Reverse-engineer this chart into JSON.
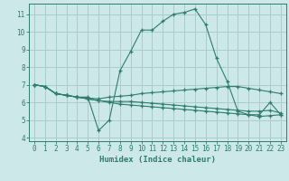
{
  "title": "",
  "xlabel": "Humidex (Indice chaleur)",
  "xlim": [
    -0.5,
    23.5
  ],
  "ylim": [
    3.8,
    11.6
  ],
  "yticks": [
    4,
    5,
    6,
    7,
    8,
    9,
    10,
    11
  ],
  "xticks": [
    0,
    1,
    2,
    3,
    4,
    5,
    6,
    7,
    8,
    9,
    10,
    11,
    12,
    13,
    14,
    15,
    16,
    17,
    18,
    19,
    20,
    21,
    22,
    23
  ],
  "bg_color": "#cde8e8",
  "grid_color": "#aacccc",
  "line_color": "#2e7d6e",
  "series": [
    {
      "x": [
        0,
        1,
        2,
        3,
        4,
        5,
        6,
        7,
        8,
        9,
        10,
        11,
        12,
        13,
        14,
        15,
        16,
        17,
        18,
        19,
        20,
        21,
        22,
        23
      ],
      "y": [
        7.0,
        6.9,
        6.5,
        6.4,
        6.3,
        6.3,
        4.4,
        5.0,
        7.8,
        8.9,
        10.1,
        10.1,
        10.6,
        11.0,
        11.1,
        11.3,
        10.4,
        8.5,
        7.2,
        5.5,
        5.3,
        5.3,
        6.0,
        5.3
      ]
    },
    {
      "x": [
        0,
        1,
        2,
        3,
        4,
        5,
        6,
        7,
        8,
        9,
        10,
        11,
        12,
        13,
        14,
        15,
        16,
        17,
        18,
        19,
        20,
        21,
        22,
        23
      ],
      "y": [
        7.0,
        6.9,
        6.5,
        6.4,
        6.3,
        6.25,
        6.2,
        6.3,
        6.35,
        6.4,
        6.5,
        6.55,
        6.6,
        6.65,
        6.7,
        6.75,
        6.8,
        6.85,
        6.9,
        6.9,
        6.8,
        6.7,
        6.6,
        6.5
      ]
    },
    {
      "x": [
        0,
        1,
        2,
        3,
        4,
        5,
        6,
        7,
        8,
        9,
        10,
        11,
        12,
        13,
        14,
        15,
        16,
        17,
        18,
        19,
        20,
        21,
        22,
        23
      ],
      "y": [
        7.0,
        6.9,
        6.5,
        6.4,
        6.3,
        6.2,
        6.1,
        6.05,
        6.05,
        6.05,
        6.0,
        5.95,
        5.9,
        5.85,
        5.8,
        5.75,
        5.7,
        5.65,
        5.6,
        5.55,
        5.5,
        5.5,
        5.55,
        5.4
      ]
    },
    {
      "x": [
        0,
        1,
        2,
        3,
        4,
        5,
        6,
        7,
        8,
        9,
        10,
        11,
        12,
        13,
        14,
        15,
        16,
        17,
        18,
        19,
        20,
        21,
        22,
        23
      ],
      "y": [
        7.0,
        6.9,
        6.5,
        6.4,
        6.3,
        6.2,
        6.1,
        6.0,
        5.9,
        5.85,
        5.8,
        5.75,
        5.7,
        5.65,
        5.6,
        5.55,
        5.5,
        5.45,
        5.4,
        5.35,
        5.3,
        5.2,
        5.25,
        5.3
      ]
    }
  ]
}
